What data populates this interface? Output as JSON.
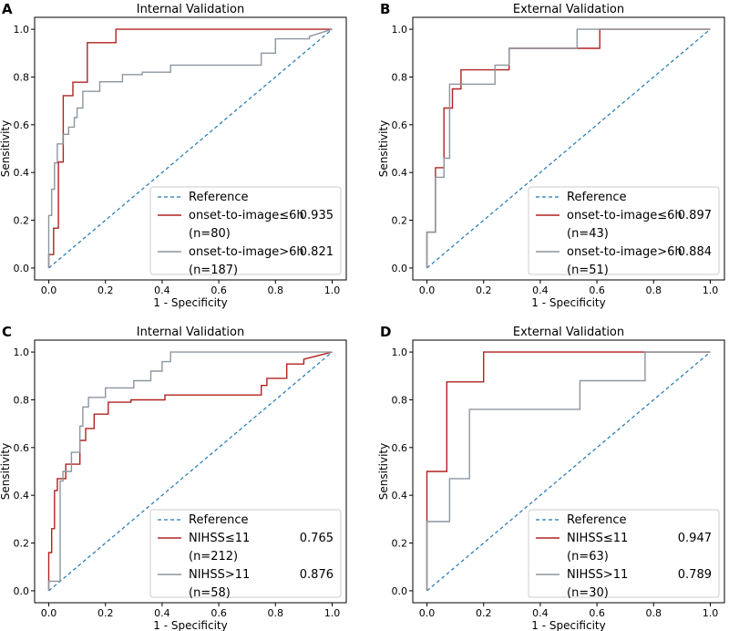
{
  "colors": {
    "reference": "#1f77b4",
    "red": "#b22222",
    "gray": "#8c96a0",
    "frame": "#000000",
    "legend_border": "#cccccc"
  },
  "chart_data": [
    {
      "type": "line",
      "panel": "A",
      "title": "Internal Validation",
      "xlabel": "1 - Specificity",
      "ylabel": "Sensitivity",
      "xlim": [
        -0.05,
        1.05
      ],
      "ylim": [
        -0.05,
        1.05
      ],
      "xticks": [
        "0.0",
        "0.2",
        "0.4",
        "0.6",
        "0.8",
        "1.0"
      ],
      "yticks": [
        "0.0",
        "0.2",
        "0.4",
        "0.6",
        "0.8",
        "1.0"
      ],
      "legend_position": "lower-right",
      "reference_label": "Reference",
      "series": [
        {
          "name": "onset-to-image≤6h",
          "n": "(n=80)",
          "auc": "0.935",
          "color_key": "red",
          "x": [
            0,
            0,
            0.017,
            0.017,
            0.034,
            0.034,
            0.051,
            0.051,
            0.085,
            0.085,
            0.136,
            0.136,
            0.237,
            0.237,
            1.0
          ],
          "y": [
            0,
            0.056,
            0.056,
            0.167,
            0.167,
            0.444,
            0.444,
            0.722,
            0.722,
            0.778,
            0.778,
            0.944,
            0.944,
            1.0,
            1.0
          ]
        },
        {
          "name": "onset-to-image>6h",
          "n": "(n=187)",
          "auc": "0.821",
          "color_key": "gray",
          "x": [
            0,
            0,
            0.01,
            0.01,
            0.02,
            0.02,
            0.03,
            0.03,
            0.05,
            0.05,
            0.07,
            0.07,
            0.09,
            0.09,
            0.1,
            0.1,
            0.12,
            0.12,
            0.18,
            0.18,
            0.26,
            0.26,
            0.33,
            0.33,
            0.43,
            0.43,
            0.75,
            0.75,
            0.8,
            0.8,
            0.92,
            0.92,
            1.0
          ],
          "y": [
            0,
            0.22,
            0.22,
            0.33,
            0.33,
            0.44,
            0.44,
            0.52,
            0.52,
            0.56,
            0.56,
            0.59,
            0.59,
            0.63,
            0.63,
            0.67,
            0.67,
            0.74,
            0.74,
            0.78,
            0.78,
            0.81,
            0.81,
            0.82,
            0.82,
            0.85,
            0.85,
            0.9,
            0.9,
            0.96,
            0.96,
            0.97,
            1.0
          ]
        }
      ]
    },
    {
      "type": "line",
      "panel": "B",
      "title": "External Validation",
      "xlabel": "1 - Specificity",
      "ylabel": "Sensitivity",
      "xlim": [
        -0.05,
        1.05
      ],
      "ylim": [
        -0.05,
        1.05
      ],
      "xticks": [
        "0.0",
        "0.2",
        "0.4",
        "0.6",
        "0.8",
        "1.0"
      ],
      "yticks": [
        "0.0",
        "0.2",
        "0.4",
        "0.6",
        "0.8",
        "1.0"
      ],
      "legend_position": "lower-right",
      "reference_label": "Reference",
      "series": [
        {
          "name": "onset-to-image≤6h",
          "n": "(n=43)",
          "auc": "0.897",
          "color_key": "red",
          "x": [
            0,
            0,
            0.03,
            0.03,
            0.06,
            0.06,
            0.09,
            0.09,
            0.12,
            0.12,
            0.29,
            0.29,
            0.61,
            0.61,
            1.0
          ],
          "y": [
            0,
            0.15,
            0.15,
            0.42,
            0.42,
            0.67,
            0.67,
            0.75,
            0.75,
            0.83,
            0.83,
            0.92,
            0.92,
            1.0,
            1.0
          ]
        },
        {
          "name": "onset-to-image>6h",
          "n": "(n=51)",
          "auc": "0.884",
          "color_key": "gray",
          "x": [
            0,
            0,
            0.03,
            0.03,
            0.06,
            0.06,
            0.08,
            0.08,
            0.24,
            0.24,
            0.29,
            0.29,
            0.53,
            0.53,
            1.0
          ],
          "y": [
            0,
            0.15,
            0.15,
            0.38,
            0.38,
            0.46,
            0.46,
            0.77,
            0.77,
            0.85,
            0.85,
            0.92,
            0.92,
            1.0,
            1.0
          ]
        }
      ]
    },
    {
      "type": "line",
      "panel": "C",
      "title": "Internal Validation",
      "xlabel": "1 - Specificity",
      "ylabel": "Sensitivity",
      "xlim": [
        -0.05,
        1.05
      ],
      "ylim": [
        -0.05,
        1.05
      ],
      "xticks": [
        "0.0",
        "0.2",
        "0.4",
        "0.6",
        "0.8",
        "1.0"
      ],
      "yticks": [
        "0.0",
        "0.2",
        "0.4",
        "0.6",
        "0.8",
        "1.0"
      ],
      "legend_position": "lower-right",
      "reference_label": "Reference",
      "series": [
        {
          "name": "NIHSS≤11",
          "n": "(n=212)",
          "auc": "0.765",
          "color_key": "red",
          "x": [
            0,
            0,
            0.01,
            0.01,
            0.02,
            0.02,
            0.03,
            0.03,
            0.06,
            0.06,
            0.11,
            0.11,
            0.13,
            0.13,
            0.16,
            0.16,
            0.21,
            0.21,
            0.29,
            0.29,
            0.41,
            0.41,
            0.75,
            0.75,
            0.77,
            0.77,
            0.84,
            0.84,
            0.9,
            0.9,
            1.0
          ],
          "y": [
            0,
            0.16,
            0.16,
            0.26,
            0.26,
            0.42,
            0.42,
            0.47,
            0.47,
            0.53,
            0.53,
            0.63,
            0.63,
            0.68,
            0.68,
            0.74,
            0.74,
            0.79,
            0.79,
            0.8,
            0.8,
            0.82,
            0.82,
            0.86,
            0.86,
            0.89,
            0.89,
            0.95,
            0.95,
            0.97,
            1.0
          ]
        },
        {
          "name": "NIHSS>11",
          "n": "(n=58)",
          "auc": "0.876",
          "color_key": "gray",
          "x": [
            0,
            0,
            0.04,
            0.04,
            0.05,
            0.05,
            0.08,
            0.08,
            0.11,
            0.11,
            0.12,
            0.12,
            0.14,
            0.14,
            0.2,
            0.2,
            0.3,
            0.3,
            0.36,
            0.36,
            0.4,
            0.4,
            0.43,
            0.43,
            1.0
          ],
          "y": [
            0,
            0.04,
            0.04,
            0.46,
            0.46,
            0.5,
            0.5,
            0.58,
            0.58,
            0.69,
            0.69,
            0.77,
            0.77,
            0.81,
            0.81,
            0.85,
            0.85,
            0.88,
            0.88,
            0.92,
            0.92,
            0.96,
            0.96,
            1.0,
            1.0
          ]
        }
      ]
    },
    {
      "type": "line",
      "panel": "D",
      "title": "External Validation",
      "xlabel": "1 - Specificity",
      "ylabel": "Sensitivity",
      "xlim": [
        -0.05,
        1.05
      ],
      "ylim": [
        -0.05,
        1.05
      ],
      "xticks": [
        "0.0",
        "0.2",
        "0.4",
        "0.6",
        "0.8",
        "1.0"
      ],
      "yticks": [
        "0.0",
        "0.2",
        "0.4",
        "0.6",
        "0.8",
        "1.0"
      ],
      "legend_position": "lower-right",
      "reference_label": "Reference",
      "series": [
        {
          "name": "NIHSS≤11",
          "n": "(n=63)",
          "auc": "0.947",
          "color_key": "red",
          "x": [
            0,
            0,
            0.07,
            0.07,
            0.2,
            0.2,
            0.77,
            0.77,
            1.0
          ],
          "y": [
            0,
            0.5,
            0.5,
            0.875,
            0.875,
            1.0,
            1.0,
            1.0,
            1.0
          ]
        },
        {
          "name": "NIHSS>11",
          "n": "(n=30)",
          "auc": "0.789",
          "color_key": "gray",
          "x": [
            0,
            0,
            0.08,
            0.08,
            0.15,
            0.15,
            0.54,
            0.54,
            0.77,
            0.77,
            1.0
          ],
          "y": [
            0,
            0.29,
            0.29,
            0.47,
            0.47,
            0.76,
            0.76,
            0.88,
            0.88,
            1.0,
            1.0
          ]
        }
      ]
    }
  ]
}
